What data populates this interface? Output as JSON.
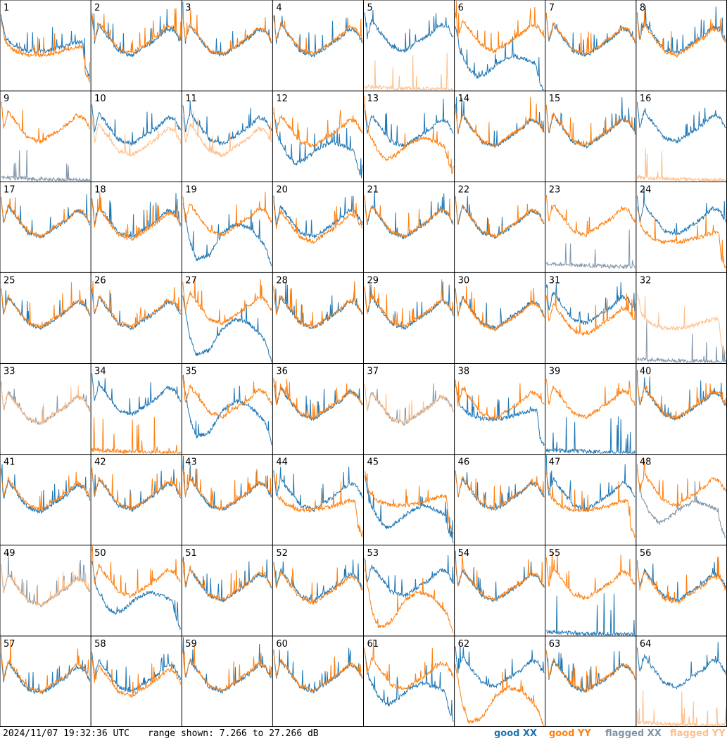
{
  "footer": {
    "timestamp": "2024/11/07 19:32:36 UTC",
    "range_text": "range shown: 7.266 to 27.266 dB"
  },
  "legend": {
    "good_xx": "good XX",
    "good_yy": "good YY",
    "flagged_xx": "flagged XX",
    "flagged_yy": "flagged YY"
  },
  "colors": {
    "good_xx": "#1f77b4",
    "good_yy": "#ff7f0e",
    "flagged_xx": "#7f95a8",
    "flagged_yy": "#ffbf8a"
  },
  "chart_data": {
    "type": "line",
    "ylim": [
      7.266,
      27.266
    ],
    "y_unit": "dB",
    "grid_rows": 8,
    "grid_cols": 8,
    "profiles": {
      "base": [
        [
          0,
          24
        ],
        [
          0.03,
          18
        ],
        [
          0.08,
          22
        ],
        [
          0.15,
          20
        ],
        [
          0.3,
          16
        ],
        [
          0.45,
          15
        ],
        [
          0.6,
          17
        ],
        [
          0.75,
          19
        ],
        [
          0.85,
          21
        ],
        [
          0.93,
          20.5
        ],
        [
          0.97,
          19
        ],
        [
          1.0,
          18
        ]
      ],
      "edge_drop": [
        [
          0,
          22
        ],
        [
          0.05,
          17
        ],
        [
          0.15,
          15
        ],
        [
          0.3,
          14
        ],
        [
          0.5,
          14
        ],
        [
          0.7,
          15
        ],
        [
          0.85,
          16
        ],
        [
          0.92,
          16
        ],
        [
          0.95,
          10
        ],
        [
          1.0,
          8
        ]
      ],
      "deep_dip": [
        [
          0,
          23
        ],
        [
          0.05,
          17
        ],
        [
          0.15,
          13
        ],
        [
          0.25,
          11
        ],
        [
          0.35,
          12
        ],
        [
          0.5,
          14.5
        ],
        [
          0.65,
          16
        ],
        [
          0.8,
          15
        ],
        [
          0.9,
          14
        ],
        [
          0.95,
          10
        ],
        [
          1.0,
          7.5
        ]
      ],
      "bump": [
        [
          0,
          22
        ],
        [
          0.08,
          13
        ],
        [
          0.15,
          9
        ],
        [
          0.3,
          10
        ],
        [
          0.45,
          15
        ],
        [
          0.6,
          17
        ],
        [
          0.75,
          16
        ],
        [
          0.85,
          14
        ],
        [
          0.93,
          12
        ],
        [
          1.0,
          7.5
        ]
      ],
      "flat_low": [
        [
          0,
          8
        ],
        [
          0.5,
          7.6
        ],
        [
          1.0,
          7.3
        ]
      ]
    },
    "panels": [
      {
        "n": 1,
        "xx": {
          "p": "edge_drop",
          "off": 2,
          "flag": false
        },
        "yy": {
          "p": "edge_drop",
          "off": 1,
          "flag": false
        }
      },
      {
        "n": 2,
        "xx": {
          "p": "base",
          "off": 0,
          "flag": false
        },
        "yy": {
          "p": "base",
          "off": 0.5,
          "flag": false
        }
      },
      {
        "n": 3,
        "xx": {
          "p": "base",
          "off": 0,
          "flag": false
        },
        "yy": {
          "p": "base",
          "off": 0.2,
          "flag": false
        }
      },
      {
        "n": 4,
        "xx": {
          "p": "base",
          "off": 0,
          "flag": false
        },
        "yy": {
          "p": "base",
          "off": 0.3,
          "flag": false
        }
      },
      {
        "n": 5,
        "xx": {
          "p": "base",
          "off": 1,
          "flag": false
        },
        "yy": {
          "p": "flat_low",
          "off": 0,
          "flag": true
        }
      },
      {
        "n": 6,
        "xx": {
          "p": "deep_dip",
          "off": -1,
          "flag": false
        },
        "yy": {
          "p": "base",
          "off": 1,
          "flag": false
        }
      },
      {
        "n": 7,
        "xx": {
          "p": "base",
          "off": 0,
          "flag": false
        },
        "yy": {
          "p": "base",
          "off": 0.3,
          "flag": false
        }
      },
      {
        "n": 8,
        "xx": {
          "p": "base",
          "off": 0.5,
          "flag": false
        },
        "yy": {
          "p": "base",
          "off": 0,
          "flag": false
        }
      },
      {
        "n": 9,
        "xx": {
          "p": "flat_low",
          "off": 0,
          "flag": true
        },
        "yy": {
          "p": "base",
          "off": 1,
          "flag": false
        }
      },
      {
        "n": 10,
        "xx": {
          "p": "base",
          "off": 0.5,
          "flag": false
        },
        "yy": {
          "p": "base",
          "off": -2,
          "flag": true
        }
      },
      {
        "n": 11,
        "xx": {
          "p": "base",
          "off": 0.5,
          "flag": false
        },
        "yy": {
          "p": "base",
          "off": -2,
          "flag": true
        }
      },
      {
        "n": 12,
        "xx": {
          "p": "deep_dip",
          "off": 0,
          "flag": false
        },
        "yy": {
          "p": "base",
          "off": 0,
          "flag": false
        }
      },
      {
        "n": 13,
        "xx": {
          "p": "base",
          "off": 0,
          "flag": false
        },
        "yy": {
          "p": "deep_dip",
          "off": 1,
          "flag": false
        }
      },
      {
        "n": 14,
        "xx": {
          "p": "base",
          "off": 0,
          "flag": false
        },
        "yy": {
          "p": "base",
          "off": 0.2,
          "flag": false
        }
      },
      {
        "n": 15,
        "xx": {
          "p": "base",
          "off": 0,
          "flag": false
        },
        "yy": {
          "p": "base",
          "off": 0.2,
          "flag": false
        }
      },
      {
        "n": 16,
        "xx": {
          "p": "base",
          "off": 1,
          "flag": false
        },
        "yy": {
          "p": "flat_low",
          "off": 0,
          "flag": true
        }
      },
      {
        "n": 17,
        "xx": {
          "p": "base",
          "off": 0,
          "flag": false
        },
        "yy": {
          "p": "base",
          "off": 0.2,
          "flag": false
        }
      },
      {
        "n": 18,
        "xx": {
          "p": "base",
          "off": 0,
          "flag": false
        },
        "yy": {
          "p": "base",
          "off": -0.5,
          "flag": false
        }
      },
      {
        "n": 19,
        "xx": {
          "p": "bump",
          "off": 1,
          "flag": false
        },
        "yy": {
          "p": "base",
          "off": 0.5,
          "flag": false
        }
      },
      {
        "n": 20,
        "xx": {
          "p": "base",
          "off": 0,
          "flag": false
        },
        "yy": {
          "p": "base",
          "off": -1,
          "flag": false
        }
      },
      {
        "n": 21,
        "xx": {
          "p": "base",
          "off": 0,
          "flag": false
        },
        "yy": {
          "p": "base",
          "off": 0.2,
          "flag": false
        }
      },
      {
        "n": 22,
        "xx": {
          "p": "base",
          "off": 0,
          "flag": false
        },
        "yy": {
          "p": "base",
          "off": 0.2,
          "flag": false
        }
      },
      {
        "n": 23,
        "xx": {
          "p": "flat_low",
          "off": 1,
          "flag": true
        },
        "yy": {
          "p": "base",
          "off": 0.5,
          "flag": false
        }
      },
      {
        "n": 24,
        "xx": {
          "p": "base",
          "off": 0.5,
          "flag": false
        },
        "yy": {
          "p": "edge_drop",
          "off": 0,
          "flag": false
        }
      },
      {
        "n": 25,
        "xx": {
          "p": "base",
          "off": 0,
          "flag": false
        },
        "yy": {
          "p": "base",
          "off": 0.2,
          "flag": false
        }
      },
      {
        "n": 26,
        "xx": {
          "p": "base",
          "off": 0,
          "flag": false
        },
        "yy": {
          "p": "base",
          "off": 0.3,
          "flag": false
        }
      },
      {
        "n": 27,
        "xx": {
          "p": "bump",
          "off": 0,
          "flag": false
        },
        "yy": {
          "p": "base",
          "off": 1,
          "flag": false
        }
      },
      {
        "n": 28,
        "xx": {
          "p": "base",
          "off": 0,
          "flag": false
        },
        "yy": {
          "p": "base",
          "off": 0.2,
          "flag": false
        }
      },
      {
        "n": 29,
        "xx": {
          "p": "base",
          "off": 0,
          "flag": false
        },
        "yy": {
          "p": "base",
          "off": 0.3,
          "flag": false
        }
      },
      {
        "n": 30,
        "xx": {
          "p": "base",
          "off": 0,
          "flag": false
        },
        "yy": {
          "p": "base",
          "off": -0.3,
          "flag": false
        }
      },
      {
        "n": 31,
        "xx": {
          "p": "base",
          "off": 1,
          "flag": false
        },
        "yy": {
          "p": "base",
          "off": -1.5,
          "flag": false
        }
      },
      {
        "n": 32,
        "xx": {
          "p": "flat_low",
          "off": 0,
          "flag": true
        },
        "yy": {
          "p": "edge_drop",
          "off": 1,
          "flag": true
        }
      },
      {
        "n": 33,
        "xx": {
          "p": "base",
          "off": -1,
          "flag": true
        },
        "yy": {
          "p": "base",
          "off": -1,
          "flag": true
        }
      },
      {
        "n": 34,
        "xx": {
          "p": "base",
          "off": 1,
          "flag": false
        },
        "yy": {
          "p": "flat_low",
          "off": 0,
          "flag": false
        }
      },
      {
        "n": 35,
        "xx": {
          "p": "bump",
          "off": 2,
          "flag": false
        },
        "yy": {
          "p": "base",
          "off": 0.5,
          "flag": false
        }
      },
      {
        "n": 36,
        "xx": {
          "p": "base",
          "off": 0,
          "flag": false
        },
        "yy": {
          "p": "base",
          "off": 0.2,
          "flag": false
        }
      },
      {
        "n": 37,
        "xx": {
          "p": "base",
          "off": -1,
          "flag": true
        },
        "yy": {
          "p": "base",
          "off": -1,
          "flag": true
        }
      },
      {
        "n": 38,
        "xx": {
          "p": "edge_drop",
          "off": 1,
          "flag": false
        },
        "yy": {
          "p": "base",
          "off": 0,
          "flag": false
        }
      },
      {
        "n": 39,
        "xx": {
          "p": "flat_low",
          "off": 0,
          "flag": false
        },
        "yy": {
          "p": "base",
          "off": 0.3,
          "flag": false
        }
      },
      {
        "n": 40,
        "xx": {
          "p": "base",
          "off": 0,
          "flag": false
        },
        "yy": {
          "p": "base",
          "off": 0.2,
          "flag": false
        }
      },
      {
        "n": 41,
        "xx": {
          "p": "base",
          "off": -0.5,
          "flag": false
        },
        "yy": {
          "p": "base",
          "off": 0,
          "flag": false
        }
      },
      {
        "n": 42,
        "xx": {
          "p": "base",
          "off": 0,
          "flag": false
        },
        "yy": {
          "p": "base",
          "off": 0.3,
          "flag": false
        }
      },
      {
        "n": 43,
        "xx": {
          "p": "base",
          "off": 0,
          "flag": false
        },
        "yy": {
          "p": "base",
          "off": 0.2,
          "flag": false
        }
      },
      {
        "n": 44,
        "xx": {
          "p": "base",
          "off": 0,
          "flag": false
        },
        "yy": {
          "p": "edge_drop",
          "off": 1,
          "flag": false
        }
      },
      {
        "n": 45,
        "xx": {
          "p": "deep_dip",
          "off": 0,
          "flag": false
        },
        "yy": {
          "p": "edge_drop",
          "off": 2,
          "flag": false
        }
      },
      {
        "n": 46,
        "xx": {
          "p": "base",
          "off": 0,
          "flag": false
        },
        "yy": {
          "p": "base",
          "off": 0.2,
          "flag": false
        }
      },
      {
        "n": 47,
        "xx": {
          "p": "base",
          "off": 0,
          "flag": false
        },
        "yy": {
          "p": "edge_drop",
          "off": 1,
          "flag": false
        }
      },
      {
        "n": 48,
        "xx": {
          "p": "deep_dip",
          "off": 1,
          "flag": true
        },
        "yy": {
          "p": "base",
          "off": 1,
          "flag": false
        }
      },
      {
        "n": 49,
        "xx": {
          "p": "base",
          "off": -1,
          "flag": true
        },
        "yy": {
          "p": "base",
          "off": -1,
          "flag": true
        }
      },
      {
        "n": 50,
        "xx": {
          "p": "deep_dip",
          "off": 1,
          "flag": false
        },
        "yy": {
          "p": "base",
          "off": 1,
          "flag": false
        }
      },
      {
        "n": 51,
        "xx": {
          "p": "base",
          "off": 0,
          "flag": false
        },
        "yy": {
          "p": "base",
          "off": 0.2,
          "flag": false
        }
      },
      {
        "n": 52,
        "xx": {
          "p": "base",
          "off": 0,
          "flag": false
        },
        "yy": {
          "p": "base",
          "off": -0.5,
          "flag": false
        }
      },
      {
        "n": 53,
        "xx": {
          "p": "base",
          "off": 1,
          "flag": false
        },
        "yy": {
          "p": "bump",
          "off": 0,
          "flag": false
        }
      },
      {
        "n": 54,
        "xx": {
          "p": "base",
          "off": 0,
          "flag": false
        },
        "yy": {
          "p": "base",
          "off": 0.2,
          "flag": false
        }
      },
      {
        "n": 55,
        "xx": {
          "p": "flat_low",
          "off": 0,
          "flag": false
        },
        "yy": {
          "p": "base",
          "off": 0.5,
          "flag": false
        }
      },
      {
        "n": 56,
        "xx": {
          "p": "base",
          "off": 0,
          "flag": false
        },
        "yy": {
          "p": "base",
          "off": -0.5,
          "flag": false
        }
      },
      {
        "n": 57,
        "xx": {
          "p": "base",
          "off": -0.5,
          "flag": false
        },
        "yy": {
          "p": "base",
          "off": 0,
          "flag": false
        }
      },
      {
        "n": 58,
        "xx": {
          "p": "base",
          "off": 0,
          "flag": false
        },
        "yy": {
          "p": "base",
          "off": -1,
          "flag": false
        }
      },
      {
        "n": 59,
        "xx": {
          "p": "base",
          "off": 0,
          "flag": false
        },
        "yy": {
          "p": "base",
          "off": 0.3,
          "flag": false
        }
      },
      {
        "n": 60,
        "xx": {
          "p": "base",
          "off": 0,
          "flag": false
        },
        "yy": {
          "p": "base",
          "off": 0.2,
          "flag": false
        }
      },
      {
        "n": 61,
        "xx": {
          "p": "deep_dip",
          "off": 1,
          "flag": false
        },
        "yy": {
          "p": "base",
          "off": 0.5,
          "flag": false
        }
      },
      {
        "n": 62,
        "xx": {
          "p": "base",
          "off": 1,
          "flag": false
        },
        "yy": {
          "p": "bump",
          "off": -1,
          "flag": false
        }
      },
      {
        "n": 63,
        "xx": {
          "p": "base",
          "off": 0,
          "flag": false
        },
        "yy": {
          "p": "base",
          "off": 0.2,
          "flag": false
        }
      },
      {
        "n": 64,
        "xx": {
          "p": "base",
          "off": 1,
          "flag": false
        },
        "yy": {
          "p": "flat_low",
          "off": 0,
          "flag": true
        }
      }
    ]
  }
}
